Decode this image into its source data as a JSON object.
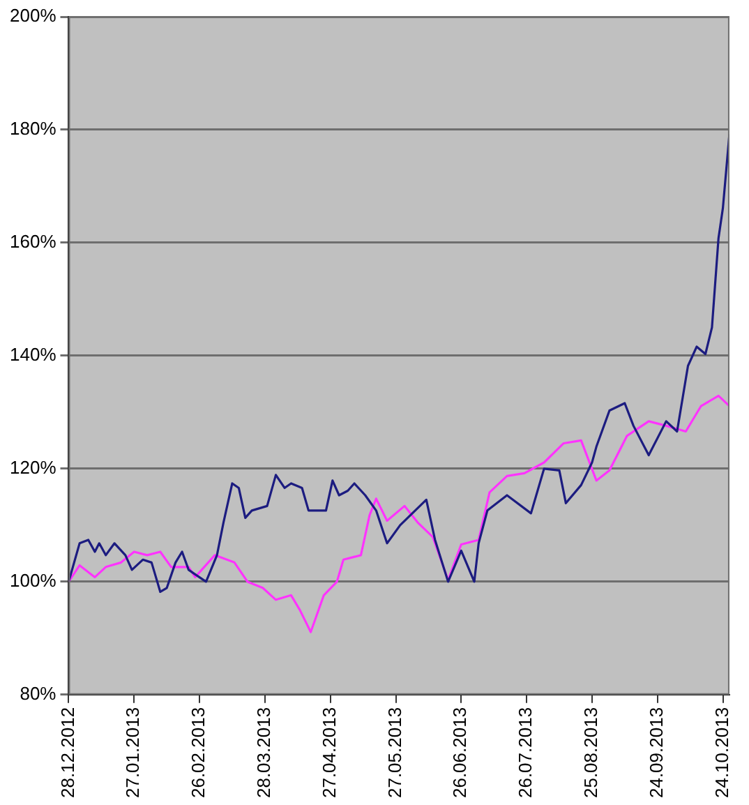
{
  "chart_data": {
    "type": "line",
    "xlim": [
      "2012-12-28",
      "2013-10-27"
    ],
    "xticks": [
      {
        "value": "2012-12-28",
        "label": "28.12.2012"
      },
      {
        "value": "2013-01-27",
        "label": "27.01.2013"
      },
      {
        "value": "2013-02-26",
        "label": "26.02.2013"
      },
      {
        "value": "2013-03-28",
        "label": "28.03.2013"
      },
      {
        "value": "2013-04-27",
        "label": "27.04.2013"
      },
      {
        "value": "2013-05-27",
        "label": "27.05.2013"
      },
      {
        "value": "2013-06-26",
        "label": "26.06.2013"
      },
      {
        "value": "2013-07-26",
        "label": "26.07.2013"
      },
      {
        "value": "2013-08-25",
        "label": "25.08.2013"
      },
      {
        "value": "2013-09-24",
        "label": "24.09.2013"
      },
      {
        "value": "2013-10-24",
        "label": "24.10.2013"
      }
    ],
    "ylim": [
      80,
      200
    ],
    "yticks": [
      {
        "value": 80,
        "label": "80%"
      },
      {
        "value": 100,
        "label": "100%"
      },
      {
        "value": 120,
        "label": "120%"
      },
      {
        "value": 140,
        "label": "140%"
      },
      {
        "value": 160,
        "label": "160%"
      },
      {
        "value": 180,
        "label": "180%"
      },
      {
        "value": 200,
        "label": "200%"
      }
    ],
    "grid": "y",
    "legend": false,
    "marker": "none",
    "line_style": "solid",
    "series": [
      {
        "color": "#1c1c80",
        "x": [
          "2012-12-28",
          "2013-01-02",
          "2013-01-06",
          "2013-01-09",
          "2013-01-11",
          "2013-01-14",
          "2013-01-18",
          "2013-01-23",
          "2013-01-26",
          "2013-01-31",
          "2013-02-04",
          "2013-02-06",
          "2013-02-08",
          "2013-02-11",
          "2013-02-15",
          "2013-02-18",
          "2013-02-21",
          "2013-02-24",
          "2013-03-01",
          "2013-03-06",
          "2013-03-09",
          "2013-03-13",
          "2013-03-16",
          "2013-03-19",
          "2013-03-22",
          "2013-03-29",
          "2013-04-02",
          "2013-04-06",
          "2013-04-09",
          "2013-04-14",
          "2013-04-17",
          "2013-04-25",
          "2013-04-28",
          "2013-05-01",
          "2013-05-05",
          "2013-05-08",
          "2013-05-13",
          "2013-05-18",
          "2013-05-23",
          "2013-05-29",
          "2013-06-10",
          "2013-06-14",
          "2013-06-20",
          "2013-06-26",
          "2013-07-02",
          "2013-07-04",
          "2013-07-08",
          "2013-07-17",
          "2013-07-28",
          "2013-08-03",
          "2013-08-10",
          "2013-08-13",
          "2013-08-20",
          "2013-08-25",
          "2013-08-27",
          "2013-09-02",
          "2013-09-09",
          "2013-09-13",
          "2013-09-20",
          "2013-09-28",
          "2013-10-03",
          "2013-10-08",
          "2013-10-12",
          "2013-10-16",
          "2013-10-19",
          "2013-10-22",
          "2013-10-24",
          "2013-10-27"
        ],
        "values": [
          100,
          106.8,
          107.4,
          105.3,
          106.8,
          104.7,
          106.8,
          104.7,
          102.1,
          103.9,
          103.4,
          100.8,
          98.2,
          98.9,
          103.4,
          105.3,
          102.1,
          101.3,
          100,
          104.7,
          110.5,
          117.4,
          116.6,
          111.3,
          112.6,
          113.4,
          118.9,
          116.6,
          117.4,
          116.6,
          112.6,
          112.6,
          117.9,
          115.3,
          116.1,
          117.4,
          115.3,
          112.6,
          106.8,
          110,
          114.5,
          107.4,
          100,
          105.5,
          100,
          106.8,
          112.6,
          115.3,
          112.1,
          120,
          119.7,
          113.9,
          117.1,
          121.1,
          123.9,
          130.3,
          131.6,
          127.6,
          122.4,
          128.4,
          126.6,
          138.2,
          141.6,
          140.3,
          145,
          160.8,
          166.1,
          179.2
        ]
      },
      {
        "color": "#ff33ff",
        "x": [
          "2012-12-28",
          "2013-01-02",
          "2013-01-09",
          "2013-01-14",
          "2013-01-21",
          "2013-01-27",
          "2013-02-02",
          "2013-02-08",
          "2013-02-13",
          "2013-02-21",
          "2013-02-24",
          "2013-03-05",
          "2013-03-14",
          "2013-03-20",
          "2013-03-27",
          "2013-04-02",
          "2013-04-09",
          "2013-04-13",
          "2013-04-18",
          "2013-04-24",
          "2013-04-30",
          "2013-05-03",
          "2013-05-11",
          "2013-05-15",
          "2013-05-18",
          "2013-05-23",
          "2013-05-31",
          "2013-06-06",
          "2013-06-13",
          "2013-06-20",
          "2013-06-26",
          "2013-07-04",
          "2013-07-09",
          "2013-07-17",
          "2013-07-25",
          "2013-08-03",
          "2013-08-12",
          "2013-08-20",
          "2013-08-27",
          "2013-09-02",
          "2013-09-10",
          "2013-09-20",
          "2013-09-28",
          "2013-10-07",
          "2013-10-14",
          "2013-10-22",
          "2013-10-27"
        ],
        "values": [
          100,
          102.9,
          100.8,
          102.6,
          103.4,
          105.3,
          104.7,
          105.3,
          102.6,
          102.6,
          100.8,
          104.7,
          103.4,
          100,
          98.9,
          96.8,
          97.6,
          95,
          91.1,
          97.6,
          100,
          103.9,
          104.7,
          111.8,
          114.7,
          110.8,
          113.4,
          110.5,
          107.9,
          100.3,
          106.6,
          107.4,
          115.8,
          118.7,
          119.2,
          121.1,
          124.5,
          125,
          117.9,
          119.7,
          125.8,
          128.4,
          127.6,
          126.6,
          131.1,
          132.9,
          131.1
        ]
      }
    ]
  }
}
